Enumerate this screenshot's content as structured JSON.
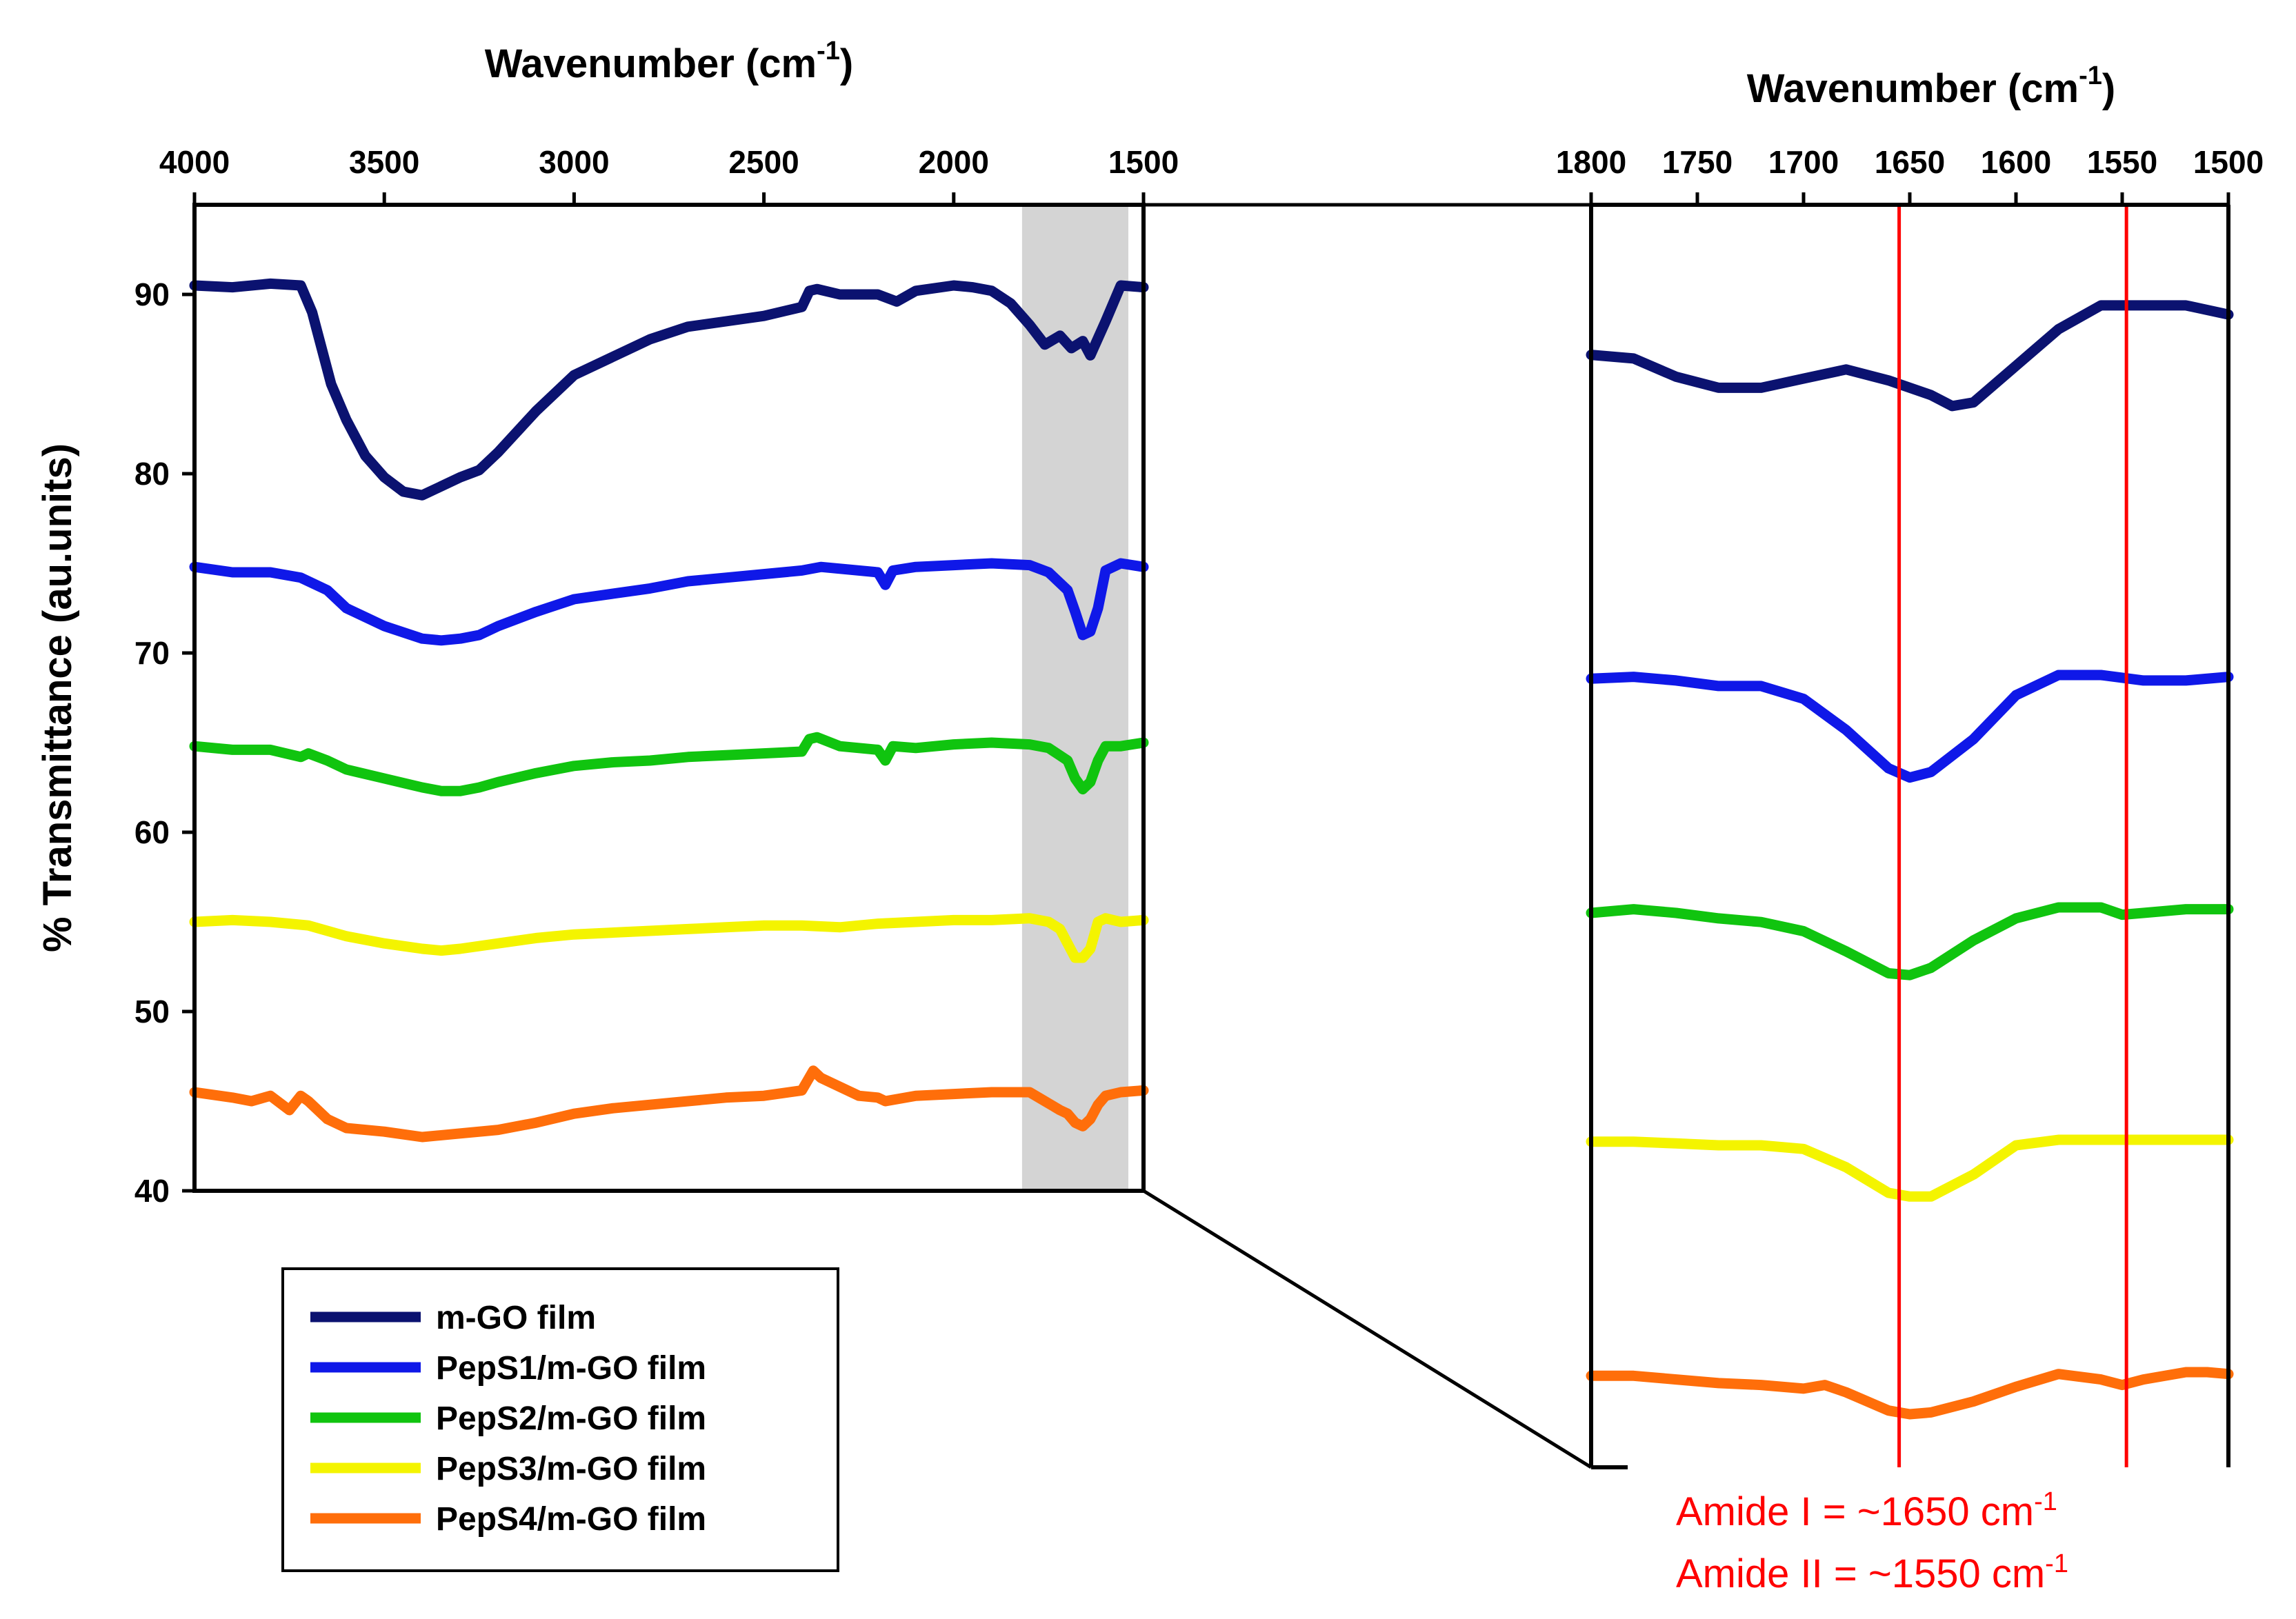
{
  "chart_data": [
    {
      "type": "line",
      "panel": "full spectrum",
      "xlabel": "Wavenumber (cm",
      "xlabel_sup": "-1",
      "xlabel_close": ")",
      "ylabel": "% Transmittance (au.units)",
      "xlim": [
        4000,
        1500
      ],
      "ylim": [
        40,
        95
      ],
      "xticks": [
        4000,
        3500,
        3000,
        2500,
        2000,
        1500
      ],
      "yticks": [
        40,
        50,
        60,
        70,
        80,
        90
      ],
      "highlight_band": [
        1820,
        1540
      ],
      "series": [
        {
          "name": "m-GO film",
          "color": "#0b1270",
          "x": [
            4000,
            3900,
            3800,
            3720,
            3690,
            3640,
            3600,
            3550,
            3500,
            3450,
            3400,
            3350,
            3300,
            3250,
            3200,
            3100,
            3000,
            2900,
            2800,
            2700,
            2600,
            2500,
            2400,
            2380,
            2360,
            2300,
            2200,
            2150,
            2100,
            2000,
            1950,
            1900,
            1850,
            1800,
            1760,
            1720,
            1690,
            1660,
            1640,
            1600,
            1560,
            1500
          ],
          "y": [
            90.5,
            90.4,
            90.6,
            90.5,
            89,
            85,
            83,
            81,
            79.8,
            79,
            78.8,
            79.3,
            79.8,
            80.2,
            81.2,
            83.5,
            85.5,
            86.5,
            87.5,
            88.2,
            88.5,
            88.8,
            89.3,
            90.2,
            90.3,
            90,
            90,
            89.6,
            90.2,
            90.5,
            90.4,
            90.2,
            89.5,
            88.3,
            87.2,
            87.7,
            87,
            87.4,
            86.6,
            88.5,
            90.5,
            90.4
          ]
        },
        {
          "name": "PepS1/m-GO film",
          "color": "#0f18e8",
          "x": [
            4000,
            3900,
            3800,
            3720,
            3650,
            3600,
            3500,
            3400,
            3350,
            3300,
            3250,
            3200,
            3100,
            3000,
            2900,
            2800,
            2700,
            2600,
            2500,
            2400,
            2350,
            2200,
            2180,
            2160,
            2100,
            2000,
            1900,
            1800,
            1750,
            1700,
            1680,
            1660,
            1640,
            1620,
            1600,
            1560,
            1500
          ],
          "y": [
            74.8,
            74.5,
            74.5,
            74.2,
            73.5,
            72.5,
            71.5,
            70.8,
            70.7,
            70.8,
            71,
            71.5,
            72.3,
            73,
            73.3,
            73.6,
            74,
            74.2,
            74.4,
            74.6,
            74.8,
            74.5,
            73.8,
            74.6,
            74.8,
            74.9,
            75,
            74.9,
            74.5,
            73.5,
            72.3,
            71,
            71.2,
            72.5,
            74.6,
            75,
            74.8
          ]
        },
        {
          "name": "PepS2/m-GO film",
          "color": "#10c40f",
          "x": [
            4000,
            3900,
            3800,
            3720,
            3700,
            3650,
            3600,
            3500,
            3400,
            3350,
            3300,
            3250,
            3200,
            3100,
            3000,
            2900,
            2800,
            2700,
            2600,
            2500,
            2400,
            2380,
            2360,
            2300,
            2200,
            2180,
            2160,
            2100,
            2000,
            1900,
            1800,
            1750,
            1700,
            1680,
            1660,
            1640,
            1620,
            1600,
            1560,
            1500
          ],
          "y": [
            64.8,
            64.6,
            64.6,
            64.2,
            64.4,
            64,
            63.5,
            63,
            62.5,
            62.3,
            62.3,
            62.5,
            62.8,
            63.3,
            63.7,
            63.9,
            64,
            64.2,
            64.3,
            64.4,
            64.5,
            65.2,
            65.3,
            64.8,
            64.6,
            64,
            64.8,
            64.7,
            64.9,
            65,
            64.9,
            64.7,
            64,
            63,
            62.4,
            62.8,
            64,
            64.8,
            64.8,
            65
          ]
        },
        {
          "name": "PepS3/m-GO film",
          "color": "#f4f400",
          "x": [
            4000,
            3900,
            3800,
            3700,
            3600,
            3500,
            3400,
            3350,
            3300,
            3200,
            3100,
            3000,
            2900,
            2800,
            2700,
            2600,
            2500,
            2400,
            2300,
            2200,
            2100,
            2000,
            1900,
            1800,
            1750,
            1720,
            1700,
            1680,
            1660,
            1640,
            1620,
            1600,
            1560,
            1500
          ],
          "y": [
            55,
            55.1,
            55,
            54.8,
            54.2,
            53.8,
            53.5,
            53.4,
            53.5,
            53.8,
            54.1,
            54.3,
            54.4,
            54.5,
            54.6,
            54.7,
            54.8,
            54.8,
            54.7,
            54.9,
            55,
            55.1,
            55.1,
            55.2,
            55,
            54.6,
            53.8,
            53,
            53,
            53.5,
            55,
            55.2,
            55,
            55.1
          ]
        },
        {
          "name": "PepS4/m-GO film",
          "color": "#ff6e0a",
          "x": [
            4000,
            3900,
            3850,
            3800,
            3750,
            3720,
            3700,
            3650,
            3600,
            3500,
            3400,
            3300,
            3200,
            3100,
            3000,
            2900,
            2800,
            2700,
            2600,
            2500,
            2400,
            2370,
            2350,
            2300,
            2250,
            2200,
            2180,
            2100,
            2000,
            1900,
            1800,
            1760,
            1720,
            1700,
            1680,
            1660,
            1640,
            1620,
            1600,
            1560,
            1500
          ],
          "y": [
            45.5,
            45.2,
            45,
            45.3,
            44.5,
            45.3,
            45,
            44,
            43.5,
            43.3,
            43,
            43.2,
            43.4,
            43.8,
            44.3,
            44.6,
            44.8,
            45,
            45.2,
            45.3,
            45.6,
            46.7,
            46.3,
            45.8,
            45.3,
            45.2,
            45,
            45.3,
            45.4,
            45.5,
            45.5,
            45,
            44.5,
            44.3,
            43.8,
            43.6,
            44,
            44.8,
            45.3,
            45.5,
            45.6
          ]
        }
      ]
    },
    {
      "type": "line",
      "panel": "zoomed amide region",
      "xlabel": "Wavenumber (cm",
      "xlabel_sup": "-1",
      "xlabel_close": ")",
      "xlim": [
        1800,
        1500
      ],
      "xticks": [
        1800,
        1750,
        1700,
        1650,
        1600,
        1550,
        1500
      ],
      "reference_lines": [
        1655,
        1548
      ],
      "annotations": [
        {
          "text": "Amide I = ~1650 cm",
          "sup": "-1"
        },
        {
          "text": "Amide II = ~1550 cm",
          "sup": "-1"
        }
      ],
      "series": [
        {
          "name": "m-GO film",
          "color": "#0b1270",
          "x": [
            1800,
            1780,
            1760,
            1740,
            1720,
            1700,
            1680,
            1660,
            1640,
            1630,
            1620,
            1600,
            1580,
            1560,
            1540,
            1520,
            1500
          ],
          "y": [
            86.8,
            86.6,
            85.6,
            85,
            85,
            85.5,
            86,
            85.4,
            84.6,
            84,
            84.2,
            86.2,
            88.2,
            89.5,
            89.5,
            89.5,
            89
          ]
        },
        {
          "name": "PepS1/m-GO film",
          "color": "#0f18e8",
          "x": [
            1800,
            1780,
            1760,
            1740,
            1720,
            1700,
            1680,
            1660,
            1650,
            1640,
            1620,
            1600,
            1580,
            1560,
            1540,
            1520,
            1500
          ],
          "y": [
            69.1,
            69.2,
            69,
            68.7,
            68.7,
            68,
            66.3,
            64.2,
            63.7,
            64,
            65.8,
            68.2,
            69.3,
            69.3,
            69,
            69,
            69.2
          ]
        },
        {
          "name": "PepS2/m-GO film",
          "color": "#10c40f",
          "x": [
            1800,
            1780,
            1760,
            1740,
            1720,
            1700,
            1680,
            1660,
            1650,
            1640,
            1620,
            1600,
            1580,
            1560,
            1550,
            1540,
            1520,
            1500
          ],
          "y": [
            56.3,
            56.5,
            56.3,
            56,
            55.8,
            55.3,
            54.2,
            53,
            52.9,
            53.3,
            54.8,
            56,
            56.6,
            56.6,
            56.2,
            56.3,
            56.5,
            56.5
          ]
        },
        {
          "name": "PepS3/m-GO film",
          "color": "#f4f400",
          "x": [
            1800,
            1780,
            1760,
            1740,
            1720,
            1700,
            1680,
            1660,
            1650,
            1640,
            1620,
            1600,
            1580,
            1560,
            1540,
            1520,
            1500
          ],
          "y": [
            43.8,
            43.8,
            43.7,
            43.6,
            43.6,
            43.4,
            42.4,
            41,
            40.8,
            40.8,
            42,
            43.6,
            43.9,
            43.9,
            43.9,
            43.9,
            43.9
          ]
        },
        {
          "name": "PepS4/m-GO film",
          "color": "#ff6e0a",
          "x": [
            1800,
            1780,
            1760,
            1740,
            1720,
            1700,
            1690,
            1680,
            1660,
            1650,
            1640,
            1620,
            1600,
            1580,
            1560,
            1550,
            1540,
            1520,
            1510,
            1500
          ],
          "y": [
            31,
            31,
            30.8,
            30.6,
            30.5,
            30.3,
            30.5,
            30.1,
            29.1,
            28.9,
            29,
            29.6,
            30.4,
            31.1,
            30.8,
            30.5,
            30.8,
            31.2,
            31.2,
            31.1
          ]
        }
      ]
    }
  ]
}
